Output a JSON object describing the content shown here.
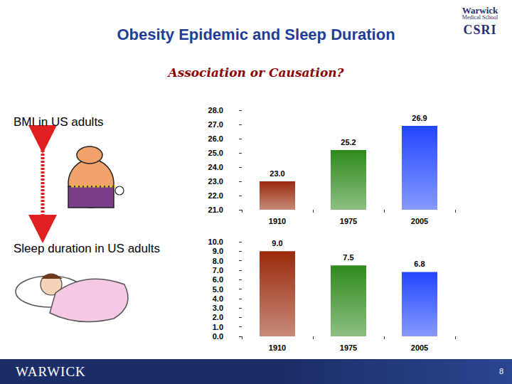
{
  "slide": {
    "title": "Obesity Epidemic and Sleep Duration",
    "subtitle": "Association or Causation?",
    "logo": [
      "Warwick",
      "Medical School",
      "CSRI"
    ],
    "footer": "WARWICK",
    "page": 8
  },
  "chart_data": [
    {
      "type": "bar",
      "title": "BMI in US adults",
      "categories": [
        "1910",
        "1975",
        "2005"
      ],
      "values": [
        23.0,
        25.2,
        26.9
      ],
      "value_labels": [
        "23.0",
        "25.2",
        "26.9"
      ],
      "colors": [
        "#9a2a0c",
        "#2f8a1c",
        "#2347ff"
      ],
      "ylim": [
        21,
        28
      ],
      "yticks": [
        {
          "value": 21,
          "label": "21.0"
        },
        {
          "value": 22,
          "label": "22.0"
        },
        {
          "value": 23,
          "label": "23.0"
        },
        {
          "value": 24,
          "label": "24.0"
        },
        {
          "value": 25,
          "label": "25.0"
        },
        {
          "value": 26,
          "label": "26.0"
        },
        {
          "value": 27,
          "label": "27.0"
        },
        {
          "value": 28,
          "label": "28.0"
        }
      ],
      "grid": false,
      "data_labels": true
    },
    {
      "type": "bar",
      "title": "Sleep duration in US adults",
      "categories": [
        "1910",
        "1975",
        "2005"
      ],
      "values": [
        9.0,
        7.5,
        6.8
      ],
      "value_labels": [
        "9.0",
        "7.5",
        "6.8"
      ],
      "colors": [
        "#9a2a0c",
        "#2f8a1c",
        "#2347ff"
      ],
      "ylim": [
        0,
        10
      ],
      "yticks": [
        {
          "value": 0,
          "label": "0.0"
        },
        {
          "value": 1,
          "label": "1.0"
        },
        {
          "value": 2,
          "label": "2.0"
        },
        {
          "value": 3,
          "label": "3.0"
        },
        {
          "value": 4,
          "label": "4.0"
        },
        {
          "value": 5,
          "label": "5.0"
        },
        {
          "value": 6,
          "label": "6.0"
        },
        {
          "value": 7,
          "label": "7.0"
        },
        {
          "value": 8,
          "label": "8.0"
        },
        {
          "value": 9,
          "label": "9.0"
        },
        {
          "value": 10,
          "label": "10.0"
        }
      ],
      "grid": false,
      "data_labels": true
    }
  ]
}
